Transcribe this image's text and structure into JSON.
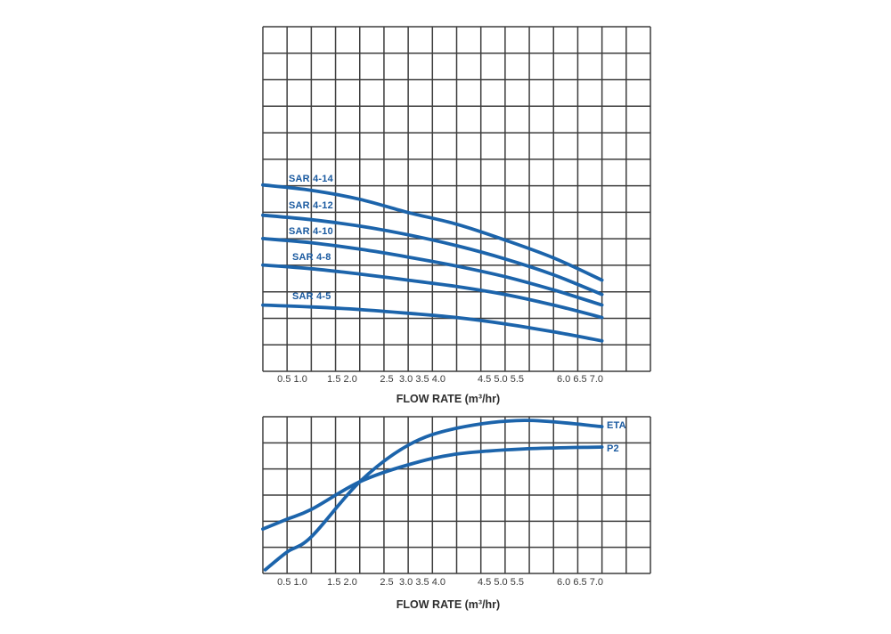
{
  "colors": {
    "background": "#ffffff",
    "curve": "#1c64ab",
    "curve_label": "#1a5aa0",
    "grid": "#3d3d3d",
    "tick_label": "#3a3a3a",
    "axis_title": "#2e2e2e"
  },
  "x_axis": {
    "title": "FLOW RATE (m³/hr)",
    "tick_groups": [
      {
        "text": "0.5 1.0"
      },
      {
        "text": "1.5 2.0"
      },
      {
        "text": "2.5"
      },
      {
        "text": "3.0 3.5 4.0"
      },
      {
        "text": "4.5 5.0 5.5"
      },
      {
        "text": "6.0 6.5 7.0"
      }
    ]
  },
  "chart_data": [
    {
      "type": "line",
      "title": "",
      "xlabel": "FLOW RATE (m³/hr)",
      "ylabel": "",
      "x_range": [
        0,
        8
      ],
      "x_ticks": [
        0.5,
        1.0,
        1.5,
        2.0,
        2.5,
        3.0,
        3.5,
        4.0,
        4.5,
        5.0,
        5.5,
        6.0,
        6.5,
        7.0
      ],
      "grid": {
        "on": true,
        "cols": 16,
        "rows": 13,
        "x_units_per_col": 0.5
      },
      "y_axis_note": "no y-axis scale printed; y values are grid rows measured from plot top",
      "legend_position": "labels-on-curves",
      "series": [
        {
          "name": "SAR 4-14",
          "x": [
            0,
            1,
            2,
            3,
            4,
            5,
            6,
            7
          ],
          "y_rows": [
            5.97,
            6.17,
            6.51,
            7.01,
            7.45,
            8.05,
            8.72,
            9.56
          ]
        },
        {
          "name": "SAR 4-12",
          "x": [
            0,
            1,
            2,
            3,
            4,
            5,
            6,
            7
          ],
          "y_rows": [
            7.11,
            7.28,
            7.52,
            7.85,
            8.26,
            8.76,
            9.36,
            10.1
          ]
        },
        {
          "name": "SAR 4-10",
          "x": [
            0,
            1,
            2,
            3,
            4,
            5,
            6,
            7
          ],
          "y_rows": [
            7.99,
            8.15,
            8.39,
            8.69,
            9.03,
            9.43,
            9.93,
            10.5
          ]
        },
        {
          "name": "SAR 4-8",
          "x": [
            0,
            1,
            2,
            3,
            4,
            5,
            6,
            7
          ],
          "y_rows": [
            8.99,
            9.13,
            9.33,
            9.56,
            9.8,
            10.1,
            10.5,
            10.97
          ]
        },
        {
          "name": "SAR 4-5",
          "x": [
            0,
            1,
            2,
            3,
            4,
            5,
            6,
            7
          ],
          "y_rows": [
            10.5,
            10.57,
            10.67,
            10.81,
            10.97,
            11.21,
            11.51,
            11.85
          ]
        }
      ]
    },
    {
      "type": "line",
      "title": "",
      "xlabel": "FLOW RATE (m³/hr)",
      "ylabel": "",
      "x_range": [
        0,
        8
      ],
      "x_ticks": [
        0.5,
        1.0,
        1.5,
        2.0,
        2.5,
        3.0,
        3.5,
        4.0,
        4.5,
        5.0,
        5.5,
        6.0,
        6.5,
        7.0
      ],
      "grid": {
        "on": true,
        "cols": 16,
        "rows": 6,
        "x_units_per_col": 0.5
      },
      "y_axis_note": "no y-axis scale printed; y values are grid rows measured from plot top",
      "legend_position": "labels-at-curve-ends",
      "series": [
        {
          "name": "ETA",
          "x": [
            0.05,
            0.5,
            1,
            2,
            3,
            4,
            5.4,
            7
          ],
          "y_rows": [
            5.86,
            5.18,
            4.6,
            2.49,
            1.09,
            0.44,
            0.14,
            0.38
          ]
        },
        {
          "name": "P2",
          "x": [
            0,
            0.5,
            1,
            2,
            3,
            4,
            5.4,
            7
          ],
          "y_rows": [
            4.3,
            3.92,
            3.55,
            2.49,
            1.84,
            1.43,
            1.23,
            1.16
          ]
        }
      ]
    }
  ]
}
